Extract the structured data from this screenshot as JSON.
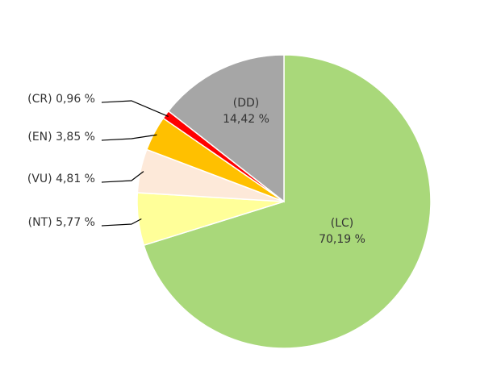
{
  "chart_data": {
    "type": "pie",
    "categories": [
      "(LC)",
      "(NT)",
      "(VU)",
      "(EN)",
      "(CR)",
      "(DD)"
    ],
    "values": [
      70.19,
      5.77,
      4.81,
      3.85,
      0.96,
      14.42
    ],
    "value_labels": [
      "70,19 %",
      "5,77 %",
      "4,81 %",
      "3,85 %",
      "0,96 %",
      "14,42 %"
    ],
    "colors": [
      "#a9d87a",
      "#ffff99",
      "#fde9d9",
      "#ffc000",
      "#ff0000",
      "#a6a6a6"
    ]
  }
}
